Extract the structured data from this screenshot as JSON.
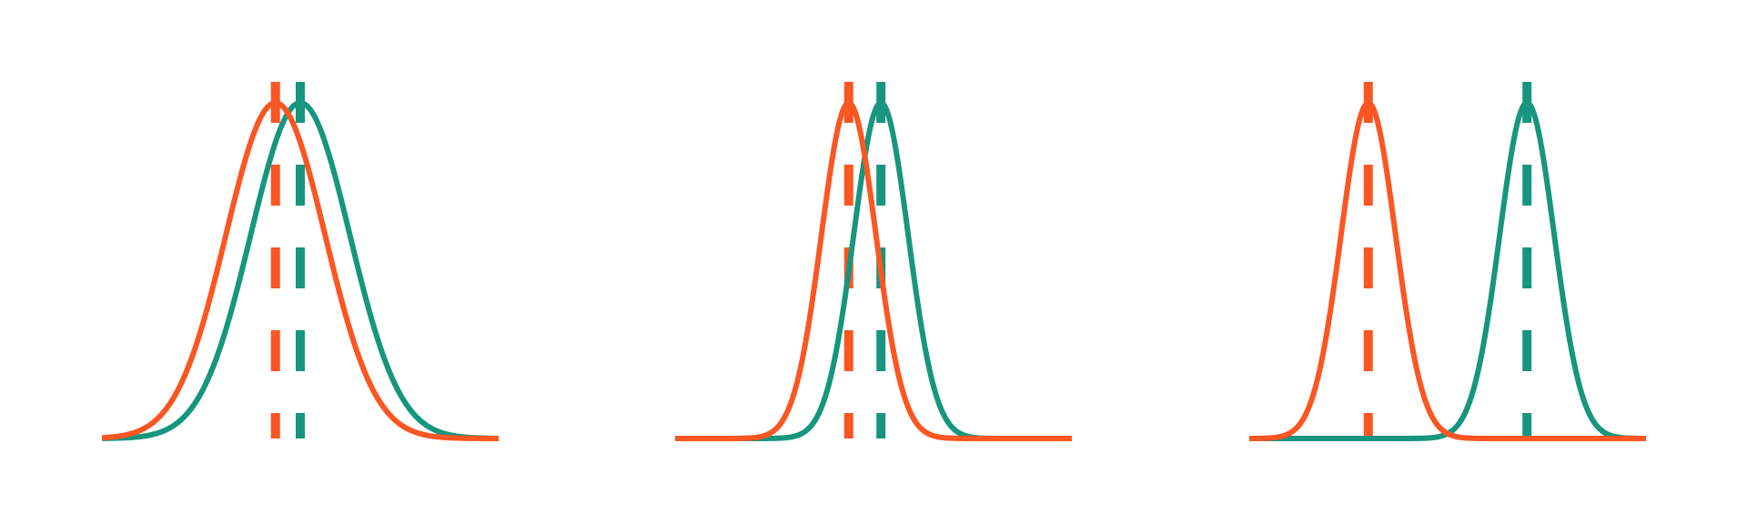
{
  "colors": {
    "series_a": "#fc5623",
    "series_b": "#16967e",
    "background": "#ffffff"
  },
  "chart_data": [
    {
      "type": "line",
      "title": "",
      "xlabel": "",
      "ylabel": "",
      "grid": false,
      "legend": "none",
      "xlim": [
        -4,
        4
      ],
      "ylim": [
        0,
        1
      ],
      "series": [
        {
          "mean": -0.5,
          "sd": 1.0,
          "peak": 1.0,
          "color_key": "series_a"
        },
        {
          "mean": 0.0,
          "sd": 1.0,
          "peak": 1.0,
          "color_key": "series_b"
        }
      ],
      "mean_markers": [
        -0.5,
        0.0
      ]
    },
    {
      "type": "line",
      "title": "",
      "xlabel": "",
      "ylabel": "",
      "grid": false,
      "legend": "none",
      "xlim": [
        -4,
        4
      ],
      "ylim": [
        0,
        1
      ],
      "series": [
        {
          "mean": -0.5,
          "sd": 0.55,
          "peak": 1.0,
          "color_key": "series_a"
        },
        {
          "mean": 0.15,
          "sd": 0.55,
          "peak": 1.0,
          "color_key": "series_b"
        }
      ],
      "mean_markers": [
        -0.5,
        0.15
      ]
    },
    {
      "type": "line",
      "title": "",
      "xlabel": "",
      "ylabel": "",
      "grid": false,
      "legend": "none",
      "xlim": [
        -4,
        4
      ],
      "ylim": [
        0,
        1
      ],
      "series": [
        {
          "mean": -1.6,
          "sd": 0.55,
          "peak": 1.0,
          "color_key": "series_a"
        },
        {
          "mean": 1.6,
          "sd": 0.55,
          "peak": 1.0,
          "color_key": "series_b"
        }
      ],
      "mean_markers": [
        -1.6,
        1.6
      ]
    }
  ]
}
